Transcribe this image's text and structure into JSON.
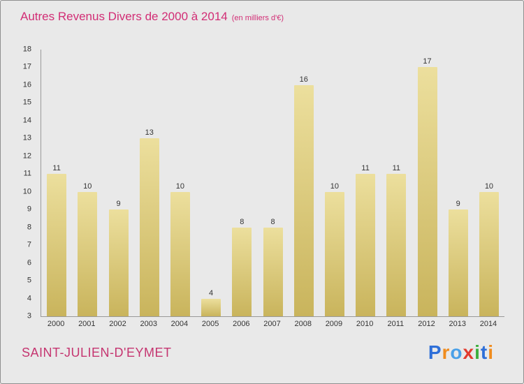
{
  "title": {
    "main": "Autres Revenus Divers de 2000 à 2014",
    "sub": "(en milliers d'€)"
  },
  "footer": {
    "location": "SAINT-JULIEN-D'EYMET"
  },
  "logo": {
    "letters": [
      {
        "ch": "P",
        "color": "#2e6fd8"
      },
      {
        "ch": "r",
        "color": "#f08c1e"
      },
      {
        "ch": "o",
        "color": "#49a0e8"
      },
      {
        "ch": "x",
        "color": "#e23a2e"
      },
      {
        "ch": "i",
        "color": "#3cae3c"
      },
      {
        "ch": "t",
        "color": "#2e6fd8"
      },
      {
        "ch": "i",
        "color": "#f08c1e"
      }
    ]
  },
  "chart_data": {
    "type": "bar",
    "title": "Autres Revenus Divers de 2000 à 2014",
    "subtitle": "(en milliers d'€)",
    "categories": [
      "2000",
      "2001",
      "2002",
      "2003",
      "2004",
      "2005",
      "2006",
      "2007",
      "2008",
      "2009",
      "2010",
      "2011",
      "2012",
      "2013",
      "2014"
    ],
    "values": [
      11,
      10,
      9,
      13,
      10,
      4,
      8,
      8,
      16,
      10,
      11,
      11,
      17,
      9,
      10
    ],
    "xlabel": "",
    "ylabel": "",
    "ylim": [
      3,
      18
    ],
    "ytick_step": 1,
    "grid": false,
    "legend": false,
    "bar_color_top": "#ecdf9d",
    "bar_color_bottom": "#c9b45c"
  }
}
